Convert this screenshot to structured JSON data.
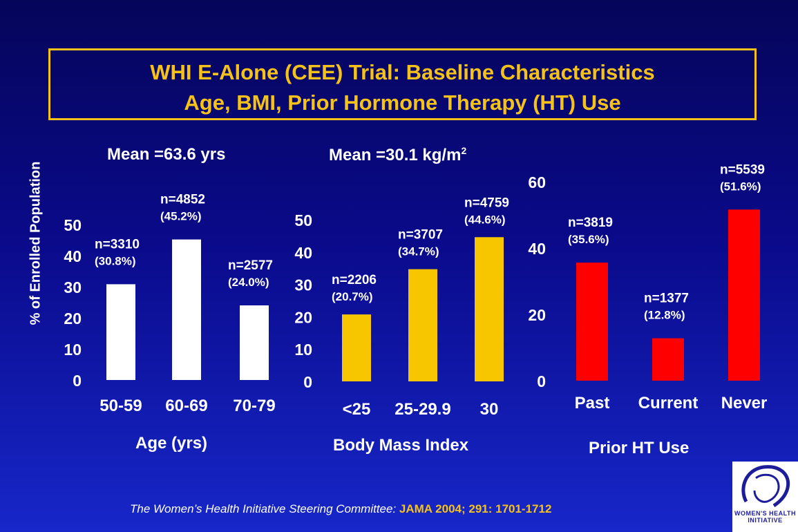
{
  "title": {
    "line1": "WHI E-Alone (CEE) Trial: Baseline Characteristics",
    "line2": "Age, BMI, Prior Hormone Therapy (HT) Use"
  },
  "ylabel": "% of Enrolled Population",
  "mean_age": "Mean =63.6 yrs",
  "mean_bmi": "Mean =30.1 kg/m",
  "mean_bmi_sup": "2",
  "citation": {
    "text": "The Women’s Health Initiative Steering Committee: ",
    "journal": "JAMA 2004; 291: 1701-1712"
  },
  "logo_text": "WOMEN'S HEALTH INITIATIVE",
  "colors": {
    "age": "#ffffff",
    "bmi": "#f7c600",
    "ht": "#ff0000",
    "accent": "#f5c21a"
  },
  "chart_data": [
    {
      "type": "bar",
      "xlabel": "Age (yrs)",
      "categories": [
        "50-59",
        "60-69",
        "70-79"
      ],
      "values": [
        30.8,
        45.2,
        24.0
      ],
      "n_labels": [
        "n=3310",
        "n=4852",
        "n=2577"
      ],
      "pct_labels": [
        "(30.8%)",
        "(45.2%)",
        "(24.0%)"
      ],
      "ylim": [
        0,
        50
      ],
      "yticks": [
        0,
        10,
        20,
        30,
        40,
        50
      ],
      "color": "#ffffff"
    },
    {
      "type": "bar",
      "xlabel": "Body Mass Index",
      "categories": [
        "<25",
        "25-29.9",
        "30"
      ],
      "values": [
        20.7,
        34.7,
        44.6
      ],
      "n_labels": [
        "n=2206",
        "n=3707",
        "n=4759"
      ],
      "pct_labels": [
        "(20.7%)",
        "(34.7%)",
        "(44.6%)"
      ],
      "ylim": [
        0,
        50
      ],
      "yticks": [
        0,
        10,
        20,
        30,
        40,
        50
      ],
      "color": "#f7c600"
    },
    {
      "type": "bar",
      "xlabel": "Prior HT Use",
      "categories": [
        "Past",
        "Current",
        "Never"
      ],
      "values": [
        35.6,
        12.8,
        51.6
      ],
      "n_labels": [
        "n=3819",
        "n=1377",
        "n=5539"
      ],
      "pct_labels": [
        "(35.6%)",
        "(12.8%)",
        "(51.6%)"
      ],
      "ylim": [
        0,
        60
      ],
      "yticks": [
        0,
        20,
        40,
        60
      ],
      "color": "#ff0000"
    }
  ]
}
